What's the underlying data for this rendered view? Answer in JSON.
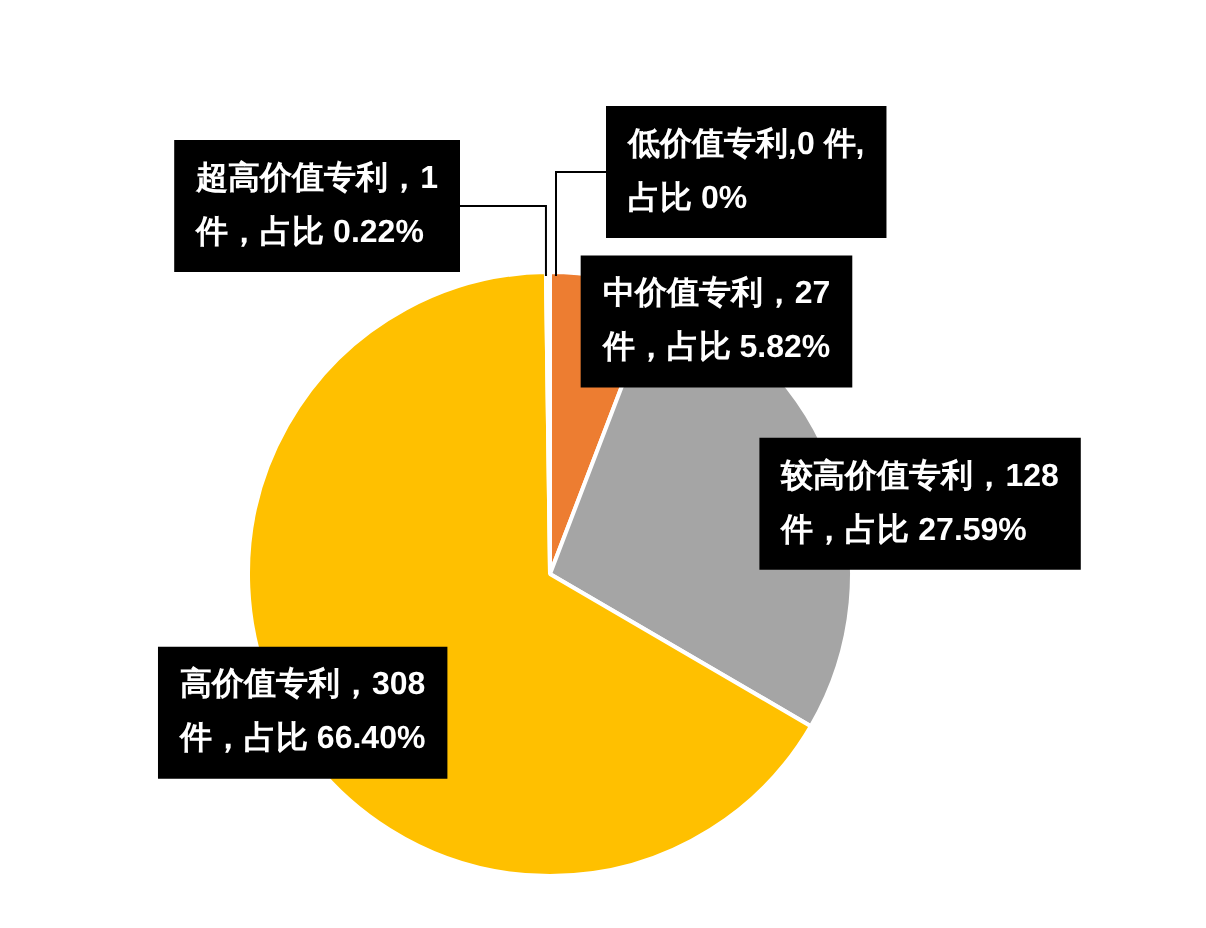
{
  "chart_data": {
    "type": "pie",
    "categories": [
      "低价值专利",
      "中价值专利",
      "较高价值专利",
      "高价值专利",
      "超高价值专利"
    ],
    "values": [
      0,
      27,
      128,
      308,
      1
    ],
    "colors": [
      "#5b9bd5",
      "#ed7d31",
      "#a5a5a5",
      "#ffc000",
      "#4472c4"
    ],
    "value_labels": [
      ",0 件,\n占比 0%",
      "，27\n件，占比 5.82%",
      "，128\n件，占比 27.59%",
      "，308\n件，占比 66.40%",
      "，1\n件，占比 0.22%"
    ],
    "legend": false
  }
}
